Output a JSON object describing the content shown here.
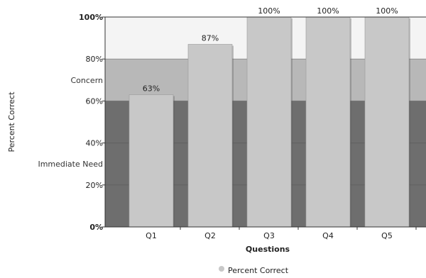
{
  "chart_data": {
    "type": "bar",
    "categories": [
      "Q1",
      "Q2",
      "Q3",
      "Q4",
      "Q5"
    ],
    "series": [
      {
        "name": "Percent Correct",
        "values": [
          63,
          87,
          100,
          100,
          100
        ]
      }
    ],
    "data_labels": [
      "63%",
      "87%",
      "100%",
      "100%",
      "100%"
    ],
    "xlabel": "Questions",
    "ylabel": "Percent Correct",
    "ylim": [
      0,
      100
    ],
    "yticks": [
      0,
      20,
      40,
      60,
      80,
      100
    ],
    "ytick_labels": [
      "0%",
      "20%",
      "40%",
      "60%",
      "80%",
      "100%"
    ],
    "bands": [
      {
        "label": "Immediate Need",
        "from": 0,
        "to": 60,
        "color": "#6e6e6e"
      },
      {
        "label": "Concern",
        "from": 60,
        "to": 80,
        "color": "#b8b8b8"
      },
      {
        "label": "",
        "from": 80,
        "to": 100,
        "color": "#f4f4f4"
      }
    ],
    "bar_color": "#c8c8c8",
    "legend": {
      "position": "bottom-center",
      "entries": [
        "Percent Correct"
      ]
    },
    "grid": true
  }
}
